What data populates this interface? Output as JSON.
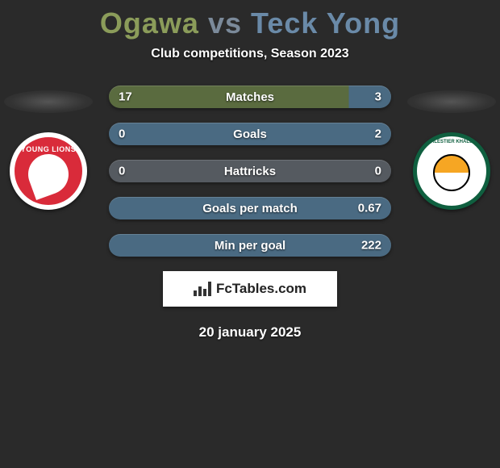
{
  "header": {
    "player_left": "Ogawa",
    "vs_word": "vs",
    "player_right": "Teck Yong",
    "subtitle": "Club competitions, Season 2023",
    "title_color_left": "#8b9c5a",
    "title_color_vs": "#7b8a9a",
    "title_color_right": "#6a8aa8"
  },
  "clubs": {
    "left": {
      "name": "Young Lions",
      "crest_text": "YOUNG LIONS"
    },
    "right": {
      "name": "Balestier Khalsa",
      "crest_text": "BALESTIER KHALSA"
    }
  },
  "stats": {
    "row_bg_left": "#5a6b3f",
    "row_bg_right": "#4a6a82",
    "row_bg_neutral": "#555a60",
    "rows": [
      {
        "label": "Matches",
        "left": "17",
        "right": "3",
        "left_pct": 85,
        "right_pct": 15
      },
      {
        "label": "Goals",
        "left": "0",
        "right": "2",
        "left_pct": 0,
        "right_pct": 100
      },
      {
        "label": "Hattricks",
        "left": "0",
        "right": "0",
        "left_pct": 50,
        "right_pct": 50,
        "neutral": true
      },
      {
        "label": "Goals per match",
        "left": "",
        "right": "0.67",
        "left_pct": 0,
        "right_pct": 100
      },
      {
        "label": "Min per goal",
        "left": "",
        "right": "222",
        "left_pct": 0,
        "right_pct": 100
      }
    ]
  },
  "watermark": {
    "text": "FcTables.com"
  },
  "footer": {
    "date": "20 january 2025"
  }
}
